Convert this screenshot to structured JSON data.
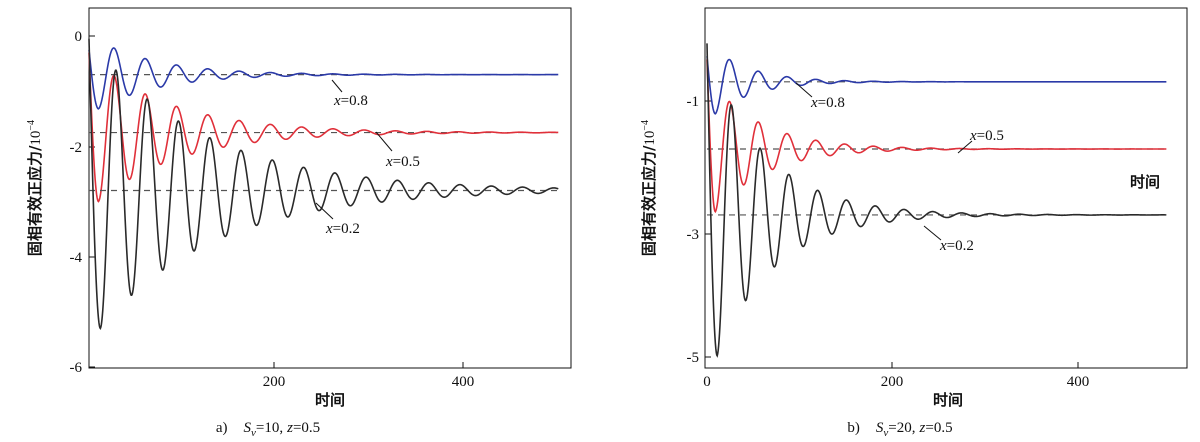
{
  "chart_data": [
    {
      "type": "line",
      "caption": {
        "prefix": "a)",
        "param1": "S",
        "param1_sub": "v",
        "param1_val": "=10",
        "sep": ",",
        "param2": "z",
        "param2_val": "=0.5"
      },
      "xlabel": "时间",
      "ylabel": "固相有效正应力/",
      "ylabel_unit": "10",
      "ylabel_exp": "−4",
      "xlim": [
        0,
        500
      ],
      "ylim": [
        -6,
        0.2
      ],
      "xticks": [
        200,
        400
      ],
      "yticks": [
        0,
        -2,
        -4,
        -6
      ],
      "ytick_labels": [
        "0",
        "-2",
        "-4",
        "-6"
      ],
      "series": [
        {
          "name": "x=0.8",
          "label_var": "x",
          "label_val": "=0.8",
          "color": "#2b3aa8",
          "steady": -0.7,
          "amp": 0.62,
          "period": 33,
          "decay": 65,
          "start": -0.25,
          "dip_t": 10
        },
        {
          "name": "x=0.5",
          "label_var": "x",
          "label_val": "=0.5",
          "color": "#e0303a",
          "steady": -1.75,
          "amp": 1.25,
          "period": 33,
          "decay": 85,
          "start": -0.3,
          "dip_t": 10
        },
        {
          "name": "x=0.2",
          "label_var": "x",
          "label_val": "=0.2",
          "color": "#2a2a2a",
          "steady": -2.8,
          "amp": 2.5,
          "period": 33,
          "decay": 120,
          "start": -0.05,
          "dip_t": 12
        }
      ]
    },
    {
      "type": "line",
      "caption": {
        "prefix": "b)",
        "param1": "S",
        "param1_sub": "v",
        "param1_val": "=20",
        "sep": ",",
        "param2": "z",
        "param2_val": "=0.5"
      },
      "xlabel": "时间",
      "ylabel": "固相有效正应力/",
      "ylabel_unit": "10",
      "ylabel_exp": "−4",
      "xlim": [
        0,
        500
      ],
      "ylim": [
        -5,
        0.05
      ],
      "xticks": [
        0,
        200,
        400
      ],
      "yticks": [
        -1,
        -3,
        -5
      ],
      "ytick_labels": [
        "-1",
        "-3",
        "-5"
      ],
      "series": [
        {
          "name": "x=0.8",
          "label_var": "x",
          "label_val": "=0.8",
          "color": "#2b3aa8",
          "steady": -0.7,
          "amp": 0.5,
          "period": 31,
          "decay": 42,
          "start": -0.3,
          "dip_t": 9
        },
        {
          "name": "x=0.5",
          "label_var": "x",
          "label_val": "=0.5",
          "color": "#e0303a",
          "steady": -1.75,
          "amp": 0.98,
          "period": 31,
          "decay": 55,
          "start": -0.35,
          "dip_t": 9
        },
        {
          "name": "x=0.2",
          "label_var": "x",
          "label_val": "=0.2",
          "color": "#2a2a2a",
          "steady": -2.78,
          "amp": 2.2,
          "period": 31,
          "decay": 62,
          "start": -0.1,
          "dip_t": 11
        }
      ]
    }
  ]
}
